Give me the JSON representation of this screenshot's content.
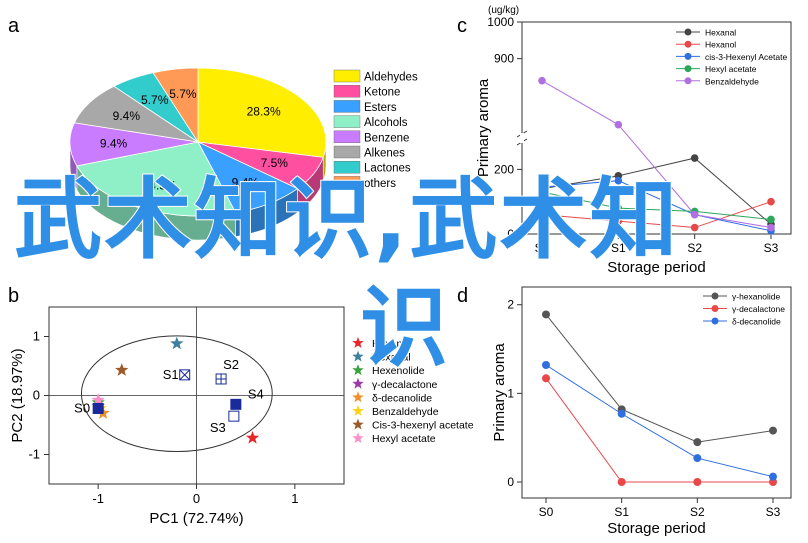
{
  "panels": {
    "a": "a",
    "b": "b",
    "c": "c",
    "d": "d"
  },
  "chart_data": [
    {
      "panel": "a",
      "type": "pie",
      "slices": [
        {
          "label": "Aldehydes",
          "value": 28.3,
          "display": "28.3%",
          "color": "#ffee00"
        },
        {
          "label": "Ketone",
          "value": 7.5,
          "display": "7.5%",
          "color": "#ff4fa0"
        },
        {
          "label": "Esters",
          "value": 9.4,
          "display": "9.4%",
          "color": "#3aa0ff"
        },
        {
          "label": "Alcohols",
          "value": 24.5,
          "display": "24.5%",
          "color": "#8ff0c8"
        },
        {
          "label": "Benzene",
          "value": 9.4,
          "display": "9.4%",
          "color": "#c97cff"
        },
        {
          "label": "Alkenes",
          "value": 9.4,
          "display": "9.4%",
          "color": "#a8a8a8"
        },
        {
          "label": "Lactones",
          "value": 5.7,
          "display": "5.7%",
          "color": "#33cccc"
        },
        {
          "label": "others",
          "value": 5.7,
          "display": "5.7%",
          "color": "#ff9955"
        }
      ]
    },
    {
      "panel": "b",
      "type": "scatter",
      "xlabel": "PC1 (72.74%)",
      "ylabel": "PC2 (18.97%)",
      "xlim": [
        -1.5,
        1.5
      ],
      "ylim": [
        -1.5,
        1.5
      ],
      "xticks": [
        "-1",
        "0",
        "1"
      ],
      "yticks": [
        "1",
        "0",
        "-1"
      ],
      "samples": [
        {
          "label": "S0",
          "x": -1.0,
          "y": -0.22
        },
        {
          "label": "S1",
          "x": -0.12,
          "y": 0.35
        },
        {
          "label": "S2",
          "x": 0.25,
          "y": 0.28
        },
        {
          "label": "S3",
          "x": 0.38,
          "y": -0.35
        },
        {
          "label": "S4",
          "x": 0.4,
          "y": -0.15
        }
      ],
      "compounds": [
        {
          "name": "Hexanol",
          "x": 0.57,
          "y": -0.72,
          "color": "#e8262b"
        },
        {
          "name": "Hexanal",
          "x": -0.2,
          "y": 0.88,
          "color": "#3f7fa0"
        },
        {
          "name": "Hexenolide",
          "x": -1.0,
          "y": -0.12,
          "color": "#3aa040"
        },
        {
          "name": "γ-decalactone",
          "x": -1.0,
          "y": -0.18,
          "color": "#9c3aa8"
        },
        {
          "name": "δ-decanolide",
          "x": -0.95,
          "y": -0.3,
          "color": "#f0902a"
        },
        {
          "name": "Benzaldehyde",
          "x": -0.98,
          "y": -0.22,
          "color": "#ffd21a"
        },
        {
          "name": "Cis-3-hexenyl acetate",
          "x": -0.76,
          "y": 0.43,
          "color": "#9a5a2a"
        },
        {
          "name": "Hexyl acetate",
          "x": -1.0,
          "y": -0.08,
          "color": "#ff8fc8"
        }
      ]
    },
    {
      "panel": "c",
      "type": "line",
      "unit": "(ug/kg)",
      "xlabel": "Storage period",
      "ylabel": "Primary aroma",
      "categories": [
        "S0",
        "S1",
        "S2",
        "S3"
      ],
      "yticks": [
        "1000",
        "900",
        "200",
        "0"
      ],
      "series": [
        {
          "name": "Hexanal",
          "color": "#444444",
          "values": [
            140,
            180,
            235,
            30
          ]
        },
        {
          "name": "Hexanol",
          "color": "#e84848",
          "values": [
            60,
            40,
            20,
            100
          ]
        },
        {
          "name": "cis-3-Hexenyl Acetate",
          "color": "#2f6fe0",
          "values": [
            145,
            165,
            60,
            10
          ]
        },
        {
          "name": "Hexyl acetate",
          "color": "#2aa85a",
          "values": [
            130,
            80,
            70,
            45
          ]
        },
        {
          "name": "Benzaldehyde",
          "color": "#b070e0",
          "values": [
            840,
            720,
            60,
            20
          ]
        }
      ]
    },
    {
      "panel": "d",
      "type": "line",
      "xlabel": "Storage period",
      "ylabel": "Primary aroma",
      "categories": [
        "S0",
        "S1",
        "S2",
        "S3"
      ],
      "ylim": [
        0,
        2.2
      ],
      "yticks": [
        "2",
        "1",
        "0"
      ],
      "series": [
        {
          "name": "γ-hexanolide",
          "color": "#555555",
          "values": [
            1.89,
            0.82,
            0.45,
            0.58
          ]
        },
        {
          "name": "γ-decalactone",
          "color": "#e84848",
          "values": [
            1.17,
            0.0,
            0.0,
            0.0
          ]
        },
        {
          "name": "δ-decanolide",
          "color": "#2f6fe0",
          "values": [
            1.32,
            0.77,
            0.27,
            0.06
          ]
        }
      ]
    }
  ],
  "watermark": {
    "line1": "武术知识,武术知",
    "line2": "识"
  }
}
